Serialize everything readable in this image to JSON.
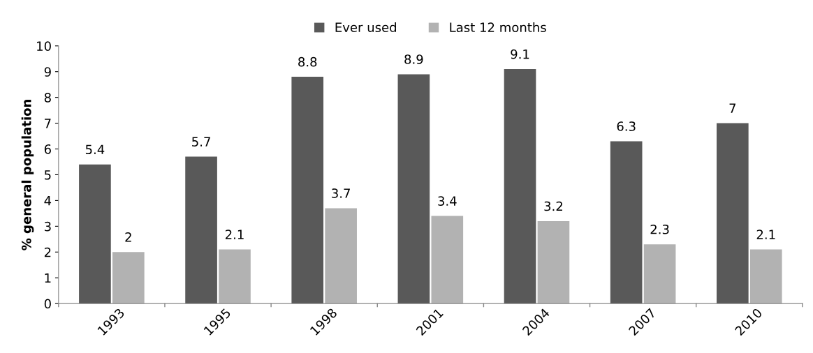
{
  "chart_data": {
    "type": "bar",
    "ylabel": "% general population",
    "categories": [
      "1993",
      "1995",
      "1998",
      "2001",
      "2004",
      "2007",
      "2010"
    ],
    "series": [
      {
        "name": "Ever used",
        "color": "#595959",
        "values": [
          5.4,
          5.7,
          8.8,
          8.9,
          9.1,
          6.3,
          7
        ]
      },
      {
        "name": "Last 12 months",
        "color": "#b2b2b2",
        "values": [
          2,
          2.1,
          3.7,
          3.4,
          3.2,
          2.3,
          2.1
        ]
      }
    ],
    "ylim": [
      0,
      10
    ],
    "yticks": [
      0,
      1,
      2,
      3,
      4,
      5,
      6,
      7,
      8,
      9,
      10
    ],
    "data_labels": true,
    "grid": false,
    "legend": "top"
  }
}
